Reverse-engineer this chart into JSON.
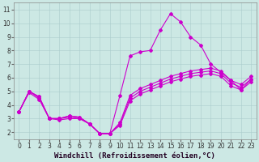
{
  "xlabel": "Windchill (Refroidissement éolien,°C)",
  "background_color": "#cce8e4",
  "grid_color": "#aacccc",
  "line_color": "#cc00cc",
  "xlim_min": -0.5,
  "xlim_max": 23.5,
  "ylim_min": 1.5,
  "ylim_max": 11.5,
  "xticks": [
    0,
    1,
    2,
    3,
    4,
    5,
    6,
    7,
    8,
    9,
    10,
    11,
    12,
    13,
    14,
    15,
    16,
    17,
    18,
    19,
    20,
    21,
    22,
    23
  ],
  "yticks": [
    2,
    3,
    4,
    5,
    6,
    7,
    8,
    9,
    10,
    11
  ],
  "line1_x": [
    0,
    1,
    2,
    3,
    4,
    5,
    6,
    7,
    8,
    9,
    10,
    11,
    12,
    13,
    14,
    15,
    16,
    17,
    18,
    19,
    20,
    21,
    22,
    23
  ],
  "line1_y": [
    3.5,
    5.0,
    4.6,
    3.0,
    3.0,
    3.2,
    3.1,
    2.6,
    1.9,
    1.9,
    4.7,
    7.6,
    7.9,
    8.0,
    9.5,
    10.7,
    10.1,
    9.0,
    8.4,
    7.0,
    6.4,
    5.8,
    5.1,
    5.9
  ],
  "line2_x": [
    0,
    1,
    2,
    3,
    4,
    5,
    6,
    7,
    8,
    9,
    10,
    11,
    12,
    13,
    14,
    15,
    16,
    17,
    18,
    19,
    20,
    21,
    22,
    23
  ],
  "line2_y": [
    3.5,
    5.0,
    4.6,
    3.0,
    3.0,
    3.2,
    3.1,
    2.6,
    1.9,
    1.9,
    2.7,
    4.7,
    5.2,
    5.5,
    5.8,
    6.1,
    6.3,
    6.5,
    6.6,
    6.7,
    6.5,
    5.8,
    5.5,
    6.1
  ],
  "line3_x": [
    0,
    1,
    2,
    3,
    4,
    5,
    6,
    7,
    8,
    9,
    10,
    11,
    12,
    13,
    14,
    15,
    16,
    17,
    18,
    19,
    20,
    21,
    22,
    23
  ],
  "line3_y": [
    3.5,
    5.0,
    4.5,
    3.0,
    3.0,
    3.1,
    3.0,
    2.6,
    1.9,
    1.9,
    2.6,
    4.5,
    5.0,
    5.3,
    5.6,
    5.9,
    6.1,
    6.3,
    6.4,
    6.5,
    6.3,
    5.6,
    5.3,
    5.9
  ],
  "line4_x": [
    0,
    1,
    2,
    3,
    4,
    5,
    6,
    7,
    8,
    9,
    10,
    11,
    12,
    13,
    14,
    15,
    16,
    17,
    18,
    19,
    20,
    21,
    22,
    23
  ],
  "line4_y": [
    3.5,
    4.9,
    4.4,
    3.0,
    2.9,
    3.0,
    3.0,
    2.6,
    1.9,
    1.9,
    2.5,
    4.3,
    4.8,
    5.1,
    5.4,
    5.7,
    5.9,
    6.1,
    6.2,
    6.3,
    6.1,
    5.4,
    5.1,
    5.7
  ],
  "markersize": 2.0,
  "linewidth": 0.8,
  "xlabel_fontsize": 6.5,
  "tick_fontsize": 5.5
}
